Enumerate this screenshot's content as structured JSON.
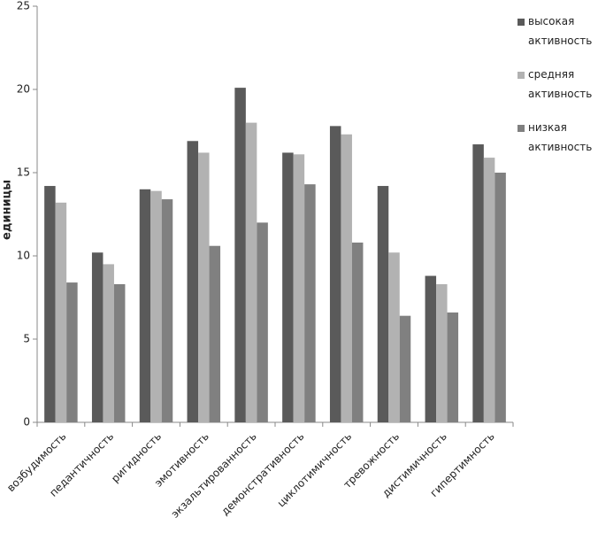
{
  "chart_data": {
    "type": "bar",
    "y_label": "единицы",
    "categories": [
      "возбудимость",
      "педантичность",
      "ригидность",
      "эмотивность",
      "экзальтированность",
      "демонстративность",
      "циклотимичность",
      "тревожность",
      "дистимичность",
      "гипертимность"
    ],
    "series": [
      {
        "name": "высокая активность",
        "color": "#5a5a5a",
        "values": [
          14.2,
          10.2,
          14.0,
          16.9,
          20.1,
          16.2,
          17.8,
          14.2,
          8.8,
          16.7
        ]
      },
      {
        "name": "средняя активность",
        "color": "#b2b2b2",
        "values": [
          13.2,
          9.5,
          13.9,
          16.2,
          18.0,
          16.1,
          17.3,
          10.2,
          8.3,
          15.9
        ]
      },
      {
        "name": "низкая активность",
        "color": "#808080",
        "values": [
          8.4,
          8.3,
          13.4,
          10.6,
          12.0,
          14.3,
          10.8,
          6.4,
          6.6,
          15.0
        ]
      }
    ],
    "ylim": [
      0,
      25
    ],
    "yticks": [
      0,
      5,
      10,
      15,
      20,
      25
    ],
    "grid": false,
    "legend": "right"
  }
}
